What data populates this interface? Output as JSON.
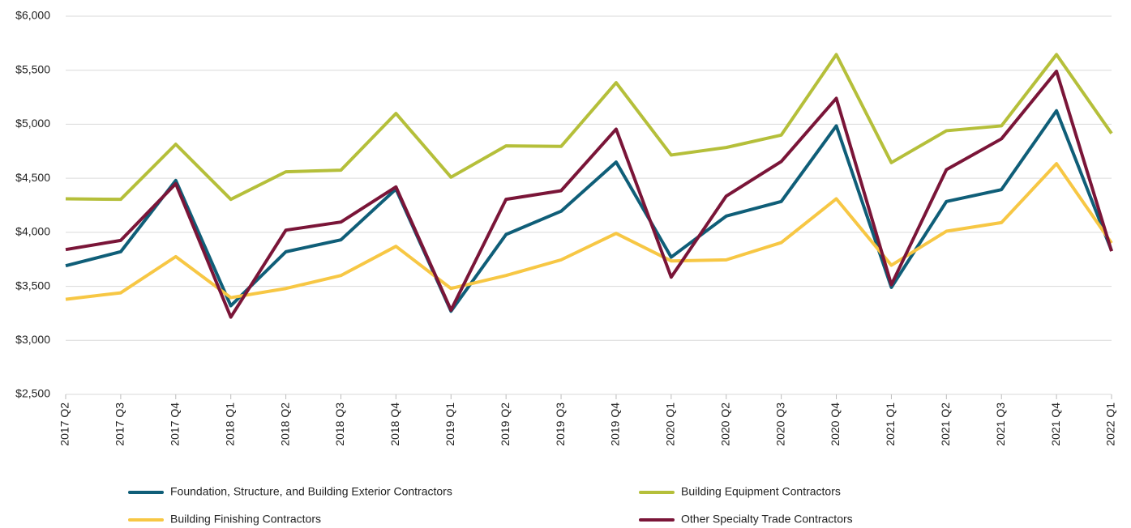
{
  "chart_data": {
    "type": "line",
    "categories": [
      "2017 Q2",
      "2017 Q3",
      "2017 Q4",
      "2018 Q1",
      "2018 Q2",
      "2018 Q3",
      "2018 Q4",
      "2019 Q1",
      "2019 Q2",
      "2019 Q3",
      "2019 Q4",
      "2020 Q1",
      "2020 Q2",
      "2020 Q3",
      "2020 Q4",
      "2021 Q1",
      "2021 Q2",
      "2021 Q3",
      "2021 Q4",
      "2022 Q1"
    ],
    "series": [
      {
        "name": "Foundation, Structure, and Building Exterior Contractors",
        "color": "#0f5e78",
        "values": [
          3690,
          3820,
          4480,
          3320,
          3820,
          3930,
          4400,
          3270,
          3980,
          4195,
          4650,
          3770,
          4150,
          4285,
          4985,
          3490,
          4285,
          4395,
          5125,
          3830
        ]
      },
      {
        "name": "Building Equipment Contractors",
        "color": "#b5bf3a",
        "values": [
          4310,
          4305,
          4815,
          4305,
          4560,
          4575,
          5100,
          4510,
          4800,
          4795,
          5385,
          4715,
          4785,
          4900,
          5645,
          4645,
          4940,
          4985,
          5645,
          4915
        ]
      },
      {
        "name": "Building Finishing Contractors",
        "color": "#f7c744",
        "values": [
          3380,
          3440,
          3775,
          3395,
          3480,
          3600,
          3870,
          3480,
          3600,
          3745,
          3990,
          3735,
          3745,
          3905,
          4310,
          3695,
          4010,
          4090,
          4635,
          3900
        ]
      },
      {
        "name": "Other Specialty Trade Contractors",
        "color": "#7a1538",
        "values": [
          3840,
          3925,
          4450,
          3215,
          4020,
          4095,
          4420,
          3280,
          4305,
          4385,
          4955,
          3585,
          4335,
          4655,
          5240,
          3515,
          4580,
          4865,
          5490,
          3825
        ]
      }
    ],
    "ylim": [
      2500,
      6000
    ],
    "yticks": [
      {
        "value": 2500,
        "label": "$2,500"
      },
      {
        "value": 3000,
        "label": "$3,000"
      },
      {
        "value": 3500,
        "label": "$3,500"
      },
      {
        "value": 4000,
        "label": "$4,000"
      },
      {
        "value": 4500,
        "label": "$4,500"
      },
      {
        "value": 5000,
        "label": "$5,000"
      },
      {
        "value": 5500,
        "label": "$5,500"
      },
      {
        "value": 6000,
        "label": "$6,000"
      }
    ],
    "grid": true
  }
}
